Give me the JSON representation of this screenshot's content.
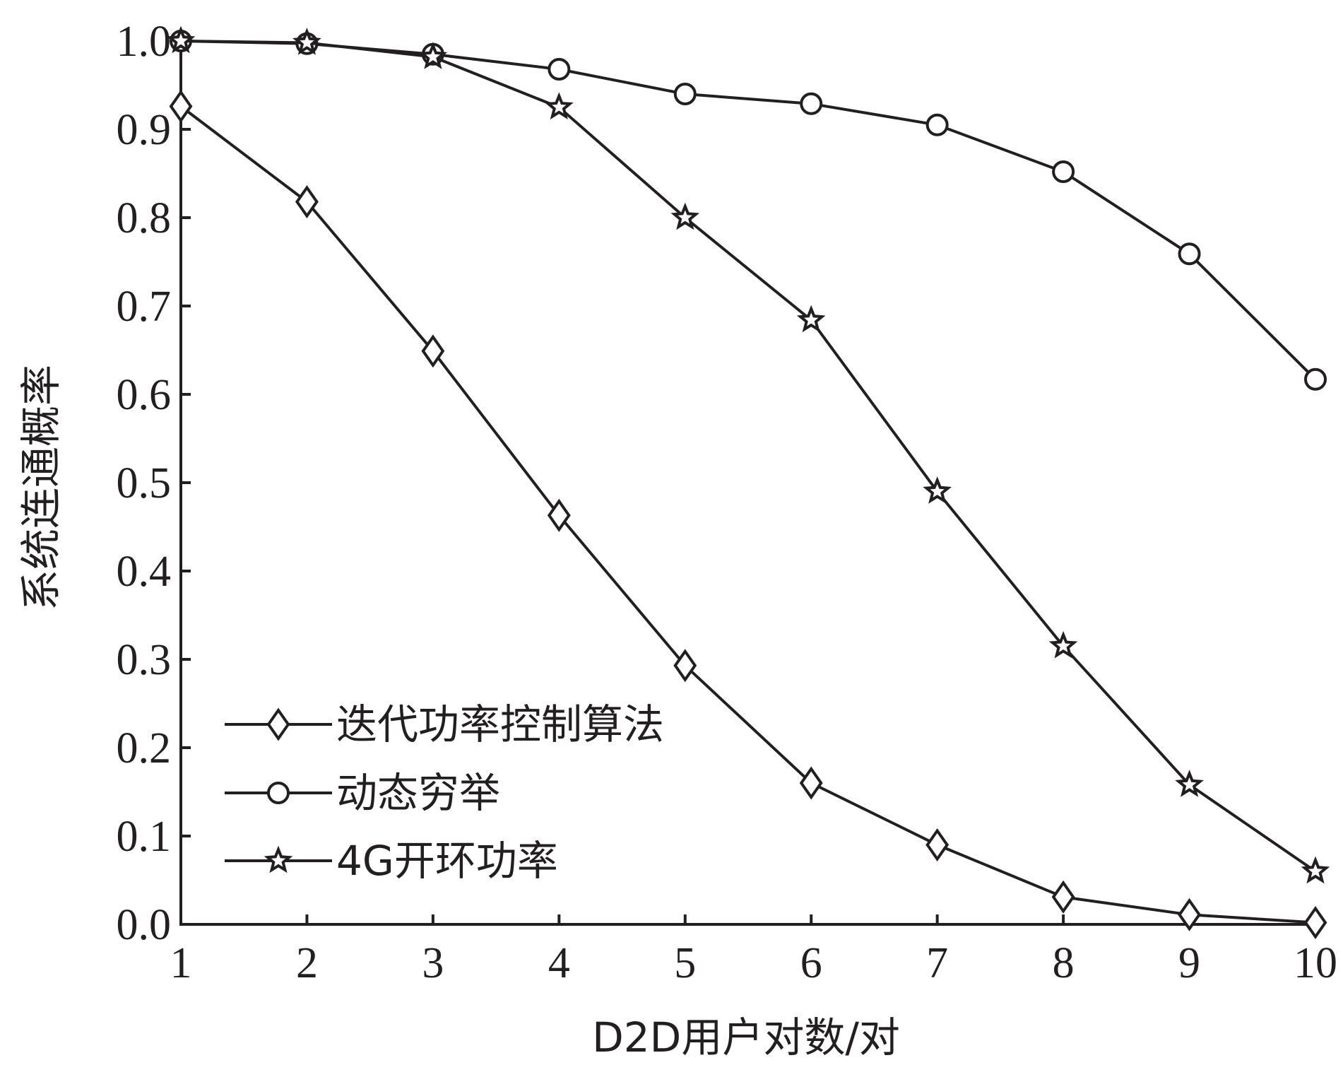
{
  "chart_data": {
    "type": "line",
    "xlabel": "D2D用户对数/对",
    "ylabel": "系统连通概率",
    "x": [
      1,
      2,
      3,
      4,
      5,
      6,
      7,
      8,
      9,
      10
    ],
    "xticks": [
      "1",
      "2",
      "3",
      "4",
      "5",
      "6",
      "7",
      "8",
      "9",
      "10"
    ],
    "yticks": [
      "0.0",
      "0.1",
      "0.2",
      "0.3",
      "0.4",
      "0.5",
      "0.6",
      "0.7",
      "0.8",
      "0.9",
      "1.0"
    ],
    "xlim": [
      1,
      10
    ],
    "ylim": [
      0,
      1
    ],
    "grid": false,
    "legend_position": "lower-left",
    "series": [
      {
        "name": "迭代功率控制算法",
        "marker": "diamond",
        "values": [
          0.926,
          0.818,
          0.649,
          0.463,
          0.293,
          0.16,
          0.09,
          0.031,
          0.011,
          0.002
        ]
      },
      {
        "name": "动态穷举",
        "marker": "circle",
        "values": [
          1.0,
          0.997,
          0.985,
          0.968,
          0.94,
          0.929,
          0.905,
          0.852,
          0.759,
          0.617
        ]
      },
      {
        "name": "4G开环功率",
        "marker": "star",
        "values": [
          1.0,
          0.998,
          0.982,
          0.925,
          0.8,
          0.684,
          0.49,
          0.315,
          0.158,
          0.06
        ]
      }
    ],
    "line_color": "#231f20"
  }
}
